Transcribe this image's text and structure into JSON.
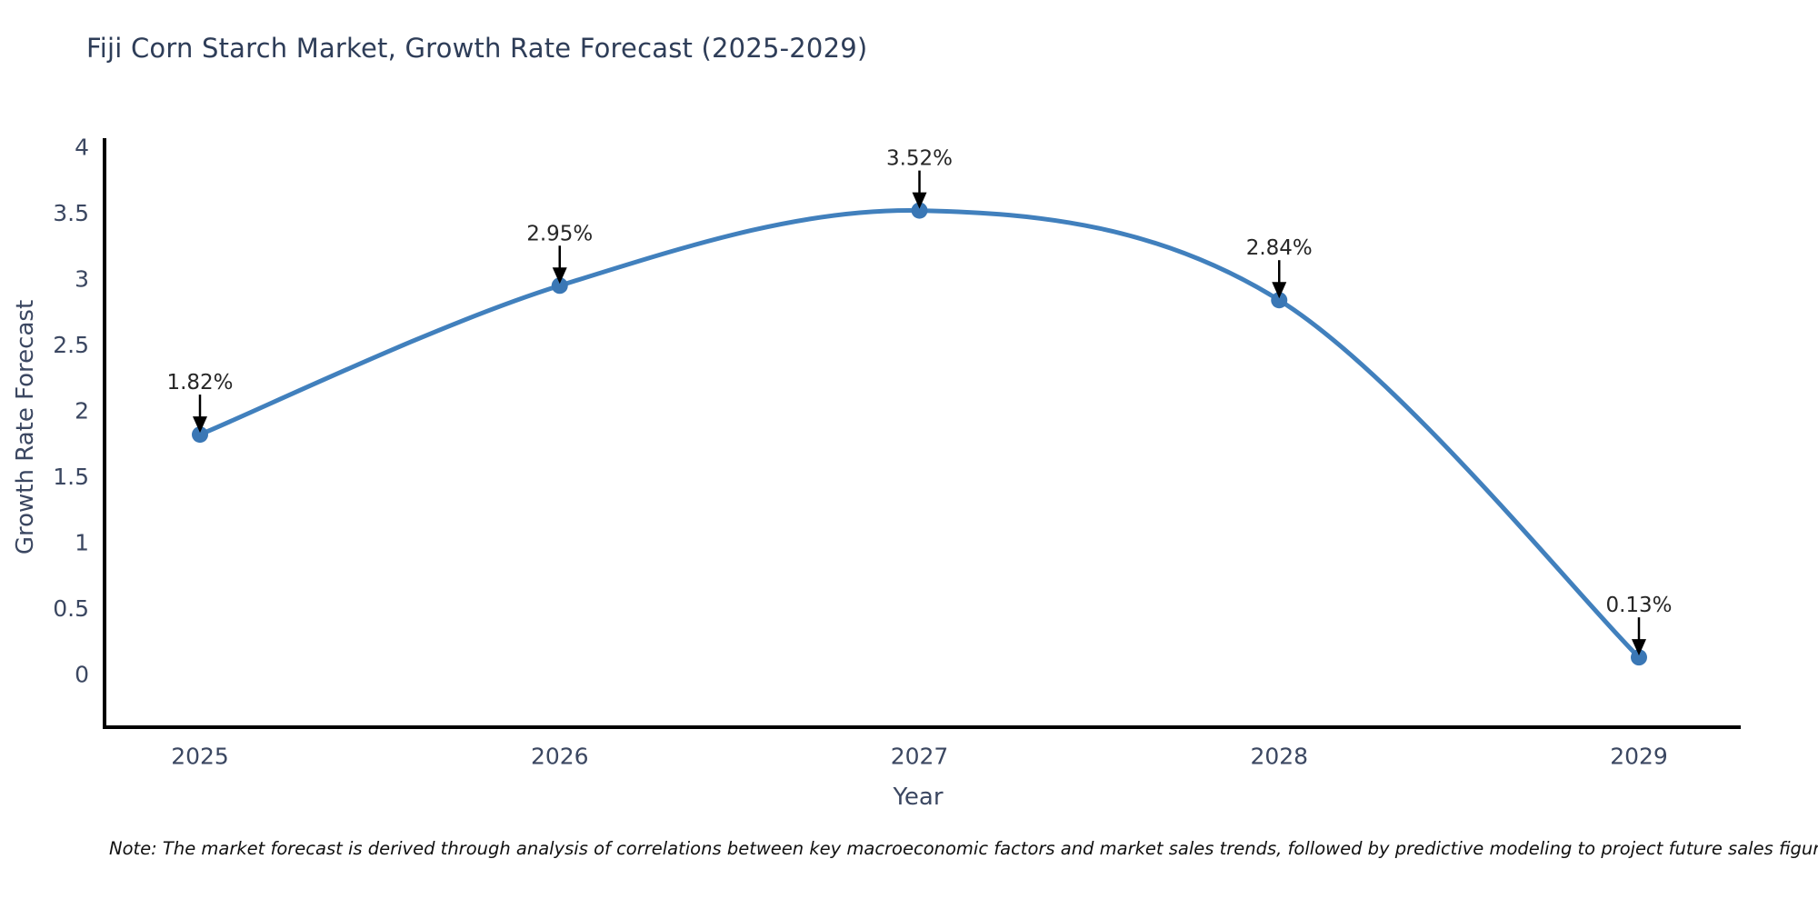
{
  "page": {
    "background_color": "#ffffff"
  },
  "chart_data": {
    "type": "line",
    "title": "Fiji Corn Starch Market, Growth Rate Forecast (2025-2029)",
    "x": [
      "2025",
      "2026",
      "2027",
      "2028",
      "2029"
    ],
    "values": [
      1.82,
      2.95,
      3.52,
      2.84,
      0.13
    ],
    "point_labels": [
      "1.82%",
      "2.95%",
      "3.52%",
      "2.84%",
      "0.13%"
    ],
    "xlabel": "Year",
    "ylabel": "Growth Rate Forecast",
    "ylim": [
      0,
      4
    ],
    "yticks": [
      0,
      0.5,
      1,
      1.5,
      2,
      2.5,
      3,
      3.5,
      4
    ],
    "grid": false,
    "legend": false,
    "line_color": "#4180bd",
    "marker_color": "#3a77b5",
    "axis_color": "#000000",
    "tick_label_color": "#3b4761",
    "title_color": "#2e3d58",
    "annotation_text_color": "#262626",
    "annotation_arrow_color": "#000000"
  },
  "footer": {
    "note": "Note: The market forecast is derived through analysis of correlations between key macroeconomic factors and market sales trends, followed by predictive modeling to project future sales figures."
  }
}
